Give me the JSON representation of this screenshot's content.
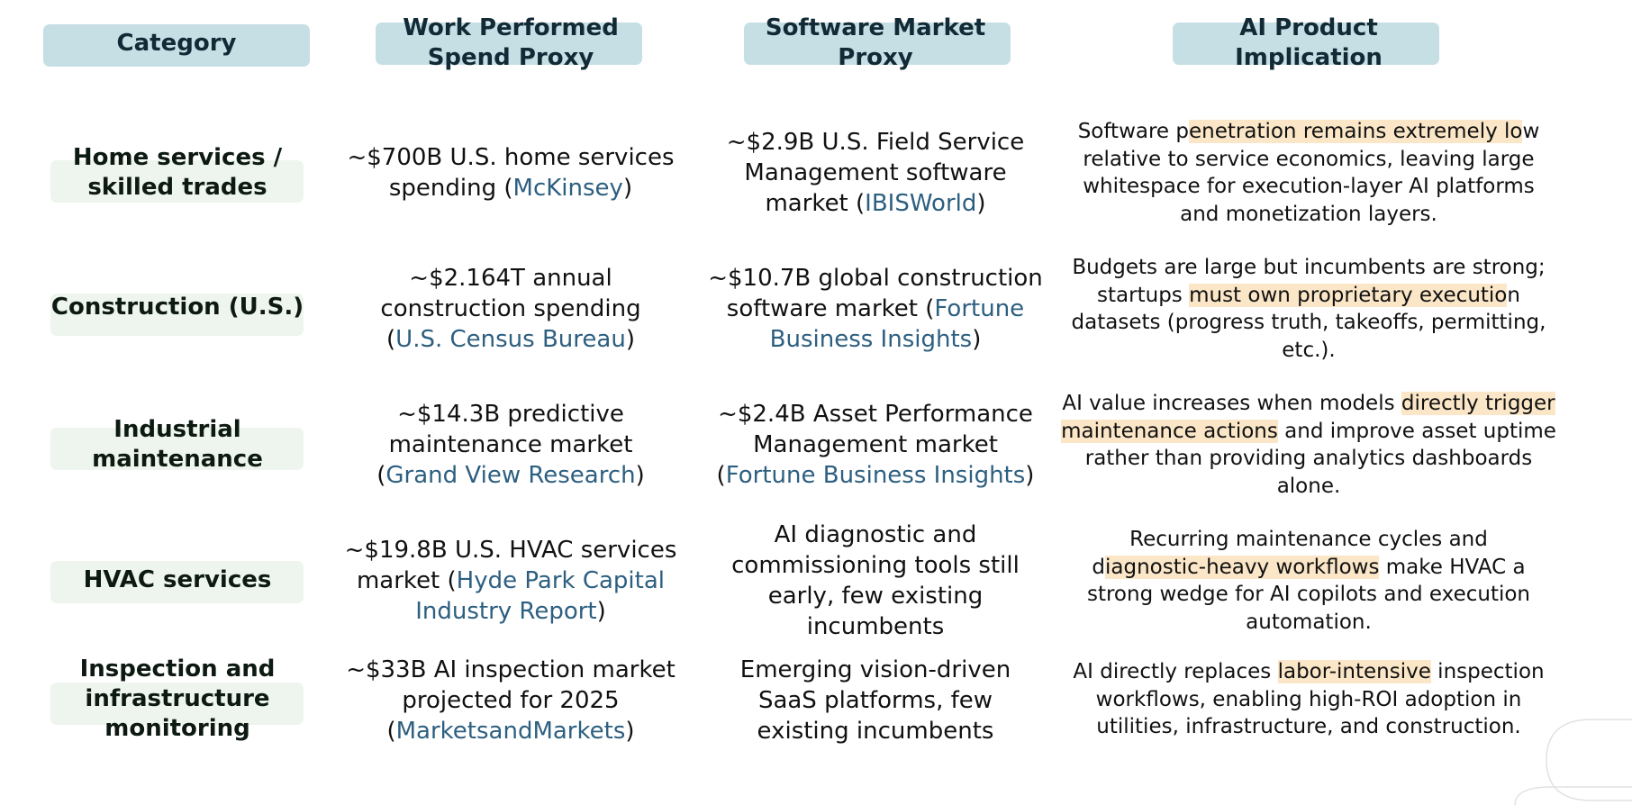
{
  "headers": {
    "category": "Category",
    "spend": [
      "Work Performed",
      "Spend Proxy"
    ],
    "software": [
      "Software Market",
      "Proxy"
    ],
    "implication": [
      "AI Product",
      "Implication"
    ]
  },
  "rows": [
    {
      "category": [
        "Home services /",
        "skilled trades"
      ],
      "spend": {
        "l1": "~$700B U.S. home services",
        "l2_pre": "spending (",
        "source": "McKinsey",
        "l2_post": ")"
      },
      "software": {
        "l1": "~$2.9B U.S. Field Service",
        "l2": "Management software",
        "l3_pre": "market (",
        "source": "IBISWorld",
        "l3_post": ")"
      },
      "implication": {
        "l1_pre": "Software p",
        "l1_hl": "enetration remains extremely lo",
        "l1_post": "w",
        "l2": "relative to service economics, leaving large",
        "l3": "whitespace for execution-layer AI platforms",
        "l4": "and monetization layers."
      }
    },
    {
      "category": [
        "Construction (U.S.)"
      ],
      "spend": {
        "l1": "~$2.164T annual",
        "l2": "construction spending",
        "l3_pre": "(",
        "source": "U.S. Census Bureau",
        "l3_post": ")"
      },
      "software": {
        "l1": "~$10.7B global construction",
        "l2_pre": "software market (",
        "source_a": "Fortune",
        "source_b": "Business Insights",
        "l3_post": ")"
      },
      "implication": {
        "l1": "Budgets are large but incumbents are strong;",
        "l2_pre": "startups ",
        "l2_hl": "must own proprietary executio",
        "l2_post": "n",
        "l3": "datasets (progress truth, takeoffs, permitting,",
        "l4": "etc.)."
      }
    },
    {
      "category": [
        "Industrial",
        "maintenance"
      ],
      "spend": {
        "l1": "~$14.3B predictive",
        "l2": "maintenance market",
        "l3_pre": "(",
        "source": "Grand View Research",
        "l3_post": ")"
      },
      "software": {
        "l1": "~$2.4B Asset Performance",
        "l2": "Management market",
        "l3_pre": "(",
        "source": "Fortune Business Insights",
        "l3_post": ")"
      },
      "implication": {
        "l1_pre": "AI value increases when models ",
        "l1_hl": "directly trigger",
        "l2_hl": "maintenance actions",
        "l2_post": " and improve asset uptime",
        "l3": "rather than providing analytics dashboards",
        "l4": "alone."
      }
    },
    {
      "category": [
        "HVAC services"
      ],
      "spend": {
        "l1": "~$19.8B U.S. HVAC services",
        "l2_pre": "market (",
        "source_a": "Hyde Park Capital",
        "source_b": "Industry Report",
        "l3_post": ")"
      },
      "software": {
        "l1": "AI diagnostic and",
        "l2": "commissioning tools still",
        "l3": "early, few existing",
        "l4": "incumbents"
      },
      "implication": {
        "l1": "Recurring maintenance cycles and",
        "l2_pre": "d",
        "l2_hl": "iagnostic-heavy workflows",
        "l2_post": " make HVAC a",
        "l3": "strong wedge for AI copilots and execution",
        "l4": "automation."
      }
    },
    {
      "category": [
        "Inspection and",
        "infrastructure",
        "monitoring"
      ],
      "spend": {
        "l1": "~$33B AI inspection market",
        "l2": "projected for 2025",
        "l3_pre": "(",
        "source": "MarketsandMarkets",
        "l3_post": ")"
      },
      "software": {
        "l1": "Emerging vision-driven",
        "l2": "SaaS platforms, few",
        "l3": "existing incumbents"
      },
      "implication": {
        "l1_pre": "AI directly replaces ",
        "l1_hl": "labor-intensive",
        "l1_post": " inspection",
        "l2": "workflows, enabling high-ROI adoption in",
        "l3": "utilities, infrastructure, and construction."
      }
    }
  ],
  "colors": {
    "header_bg": "#c6dfe4",
    "category_bg": "#eef4ee",
    "link": "#2d5f80",
    "highlight": "#fbe7c8"
  }
}
